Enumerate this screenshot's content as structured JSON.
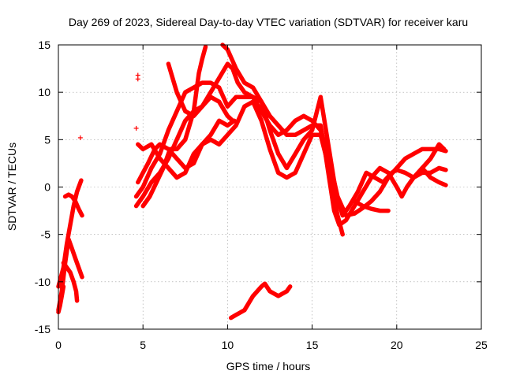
{
  "chart_data": {
    "type": "scatter",
    "title": "Day 269 of 2023, Sidereal Day-to-day VTEC variation (SDTVAR) for receiver karu",
    "xlabel": "GPS time / hours",
    "ylabel": "SDTVAR / TECUs",
    "xlim": [
      0,
      25
    ],
    "ylim": [
      -15,
      15
    ],
    "xticks": [
      0,
      5,
      10,
      15,
      20,
      25
    ],
    "yticks": [
      -15,
      -10,
      -5,
      0,
      5,
      10,
      15
    ],
    "xtick_labels": [
      "0",
      "5",
      "10",
      "15",
      "20",
      "25"
    ],
    "ytick_labels": [
      "-15",
      "-10",
      "-5",
      "0",
      "5",
      "10",
      "15"
    ],
    "grid": true,
    "legend": "none",
    "marker_color": "#ff0000",
    "series": [
      {
        "name": "s1",
        "points": [
          [
            0,
            -13
          ],
          [
            0.2,
            -11
          ],
          [
            0.4,
            -8
          ],
          [
            0.6,
            -5.5
          ],
          [
            0.8,
            -6.5
          ],
          [
            1,
            -7.5
          ],
          [
            1.2,
            -8.5
          ],
          [
            1.4,
            -9.5
          ]
        ]
      },
      {
        "name": "s2",
        "points": [
          [
            0,
            -10.5
          ],
          [
            0.3,
            -8.5
          ],
          [
            0.5,
            -6
          ],
          [
            0.7,
            -4
          ],
          [
            0.9,
            -2
          ],
          [
            1.1,
            -0.5
          ],
          [
            1.35,
            0.7
          ]
        ]
      },
      {
        "name": "s3",
        "points": [
          [
            0.3,
            -8
          ],
          [
            0.5,
            -8.5
          ],
          [
            0.7,
            -9
          ],
          [
            0.9,
            -10
          ],
          [
            1.05,
            -11
          ],
          [
            1.1,
            -12
          ]
        ]
      },
      {
        "name": "s4",
        "points": [
          [
            0.4,
            -1
          ],
          [
            0.6,
            -0.8
          ],
          [
            0.8,
            -1
          ],
          [
            1,
            -1.5
          ],
          [
            1.2,
            -2.3
          ],
          [
            1.4,
            -3
          ]
        ]
      },
      {
        "name": "s5",
        "points": [
          [
            0,
            -13.2
          ],
          [
            0.1,
            -12.5
          ],
          [
            0.2,
            -11.5
          ],
          [
            0.3,
            -10.5
          ]
        ]
      },
      {
        "name": "s6",
        "points": [
          [
            4.6,
            -2
          ],
          [
            5,
            -1
          ],
          [
            5.5,
            0.5
          ],
          [
            6,
            1.5
          ],
          [
            6.5,
            3
          ],
          [
            7,
            5
          ],
          [
            7.5,
            7
          ],
          [
            8,
            8
          ],
          [
            8.5,
            8.5
          ],
          [
            9,
            10
          ],
          [
            9.5,
            11.5
          ],
          [
            10,
            13
          ],
          [
            10.3,
            12.5
          ],
          [
            10.6,
            11
          ],
          [
            11,
            10
          ],
          [
            11.5,
            9.5
          ],
          [
            12,
            9
          ],
          [
            12.5,
            7.5
          ],
          [
            13,
            6.5
          ],
          [
            13.5,
            5.5
          ],
          [
            14,
            5.5
          ],
          [
            14.5,
            6
          ],
          [
            15,
            6.5
          ],
          [
            15.5,
            6.5
          ],
          [
            15.7,
            4.5
          ],
          [
            16,
            1
          ],
          [
            16.3,
            -2.5
          ],
          [
            16.6,
            -4
          ],
          [
            17,
            -3.5
          ],
          [
            17.5,
            -2
          ],
          [
            18,
            -0.5
          ],
          [
            18.5,
            1
          ],
          [
            19,
            2
          ],
          [
            19.5,
            1.5
          ],
          [
            20,
            0
          ],
          [
            20.3,
            -1
          ],
          [
            20.6,
            0
          ],
          [
            21,
            1
          ],
          [
            21.5,
            1.5
          ],
          [
            22,
            1.5
          ],
          [
            22.5,
            2
          ],
          [
            22.9,
            1.8
          ]
        ]
      },
      {
        "name": "s7",
        "points": [
          [
            4.6,
            -1
          ],
          [
            5,
            0
          ],
          [
            5.5,
            2
          ],
          [
            6,
            3.5
          ],
          [
            6.5,
            6
          ],
          [
            7,
            8
          ],
          [
            7.5,
            10
          ],
          [
            8,
            10.5
          ],
          [
            8.5,
            11
          ],
          [
            9,
            11
          ],
          [
            9.5,
            10.5
          ],
          [
            10,
            8.5
          ],
          [
            10.5,
            9.5
          ],
          [
            11,
            9.5
          ],
          [
            11.5,
            9.5
          ],
          [
            12,
            8
          ],
          [
            12.5,
            6.5
          ],
          [
            13,
            5.5
          ],
          [
            13.5,
            6
          ],
          [
            14,
            7
          ],
          [
            14.5,
            7.5
          ],
          [
            15,
            7
          ],
          [
            15.5,
            6
          ],
          [
            16,
            3
          ],
          [
            16.5,
            -1
          ],
          [
            17,
            -3
          ],
          [
            17.5,
            -2.8
          ],
          [
            18,
            -2.2
          ],
          [
            18.5,
            -1.5
          ],
          [
            19,
            -0.5
          ],
          [
            19.5,
            1
          ],
          [
            20,
            2
          ],
          [
            20.5,
            3
          ],
          [
            21,
            3.5
          ],
          [
            21.5,
            4
          ],
          [
            22,
            4
          ],
          [
            22.5,
            4
          ],
          [
            22.9,
            3.8
          ]
        ]
      },
      {
        "name": "s8",
        "points": [
          [
            4.7,
            0.5
          ],
          [
            5,
            1.5
          ],
          [
            5.3,
            2.5
          ],
          [
            5.7,
            4
          ],
          [
            6,
            4.5
          ],
          [
            6.5,
            4
          ],
          [
            7,
            3
          ],
          [
            7.5,
            2
          ],
          [
            8,
            2.5
          ],
          [
            8.5,
            4.5
          ],
          [
            9,
            5.5
          ],
          [
            9.5,
            7
          ],
          [
            10,
            6.5
          ],
          [
            10.4,
            7
          ]
        ]
      },
      {
        "name": "s9",
        "points": [
          [
            4.7,
            4.5
          ],
          [
            5,
            4
          ],
          [
            5.5,
            4.5
          ],
          [
            6,
            3
          ],
          [
            6.5,
            2
          ],
          [
            7,
            1
          ],
          [
            7.5,
            1.5
          ],
          [
            8,
            3.5
          ],
          [
            8.5,
            4.5
          ],
          [
            9,
            5
          ],
          [
            9.5,
            4.5
          ],
          [
            10,
            5.5
          ],
          [
            10.5,
            6.5
          ],
          [
            11,
            8.5
          ],
          [
            11.5,
            9
          ],
          [
            12,
            7
          ],
          [
            12.5,
            4
          ],
          [
            13,
            1.5
          ],
          [
            13.5,
            1
          ],
          [
            14,
            1.5
          ],
          [
            14.5,
            3.5
          ],
          [
            15,
            5.5
          ],
          [
            15.5,
            5.5
          ],
          [
            16,
            2
          ],
          [
            16.5,
            -3
          ],
          [
            16.8,
            -5
          ]
        ]
      },
      {
        "name": "s10",
        "points": [
          [
            6.5,
            13
          ],
          [
            7,
            10
          ],
          [
            7.5,
            8
          ],
          [
            8,
            7.5
          ],
          [
            8.5,
            8.5
          ],
          [
            9,
            9.5
          ],
          [
            9.5,
            9
          ],
          [
            10,
            7.5
          ],
          [
            10.3,
            7
          ]
        ]
      },
      {
        "name": "s11",
        "points": [
          [
            9.7,
            15
          ],
          [
            10,
            14.5
          ],
          [
            10.5,
            12.5
          ],
          [
            11,
            11
          ],
          [
            11.5,
            10.5
          ],
          [
            12,
            9
          ],
          [
            12.5,
            6
          ],
          [
            13,
            3.5
          ],
          [
            13.5,
            2
          ],
          [
            14,
            3.5
          ],
          [
            14.5,
            5
          ],
          [
            15,
            6
          ],
          [
            15.5,
            9.5
          ],
          [
            16,
            4
          ],
          [
            16.4,
            -0.5
          ],
          [
            16.8,
            -3
          ],
          [
            17.2,
            -2
          ],
          [
            17.7,
            -0.5
          ],
          [
            18.2,
            1.5
          ],
          [
            18.7,
            1
          ],
          [
            19.2,
            0.5
          ],
          [
            19.7,
            1.5
          ],
          [
            20,
            1.8
          ],
          [
            20.5,
            1.5
          ],
          [
            21,
            1
          ],
          [
            21.5,
            2
          ],
          [
            22,
            3
          ],
          [
            22.5,
            4.5
          ],
          [
            22.8,
            4
          ]
        ]
      },
      {
        "name": "s12",
        "points": [
          [
            5,
            -2
          ],
          [
            5.4,
            -1
          ],
          [
            5.8,
            0.5
          ],
          [
            6.2,
            2
          ],
          [
            6.6,
            4
          ],
          [
            7,
            4
          ],
          [
            7.5,
            5
          ],
          [
            8,
            8
          ],
          [
            8.3,
            12
          ],
          [
            8.5,
            13.5
          ],
          [
            8.7,
            14.8
          ]
        ]
      },
      {
        "name": "s13",
        "points": [
          [
            10.2,
            -13.8
          ],
          [
            10.5,
            -13.5
          ],
          [
            11,
            -13
          ],
          [
            11.5,
            -11.5
          ],
          [
            12,
            -10.5
          ],
          [
            12.2,
            -10.2
          ],
          [
            12.5,
            -11
          ],
          [
            13,
            -11.5
          ],
          [
            13.5,
            -11
          ],
          [
            13.7,
            -10.5
          ]
        ]
      },
      {
        "name": "s14",
        "points": [
          [
            17.5,
            -1.5
          ],
          [
            18,
            -2
          ],
          [
            18.5,
            -2.3
          ],
          [
            19,
            -2.5
          ],
          [
            19.5,
            -2.5
          ]
        ]
      },
      {
        "name": "s15",
        "points": [
          [
            21.5,
            2
          ],
          [
            22,
            1
          ],
          [
            22.5,
            0.5
          ],
          [
            22.9,
            0.2
          ]
        ]
      }
    ],
    "isolated_points": [
      [
        1.3,
        5.2
      ],
      [
        4.7,
        11.8
      ],
      [
        4.7,
        11.4
      ],
      [
        4.6,
        6.2
      ]
    ]
  }
}
